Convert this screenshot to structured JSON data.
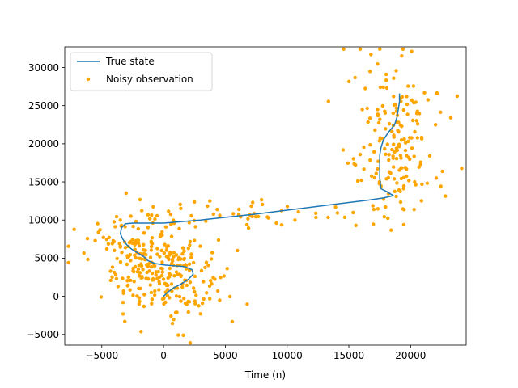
{
  "chart_data": {
    "type": "line",
    "xlabel": "Time (n)",
    "ylabel": "",
    "xlim": [
      -8000,
      24500
    ],
    "ylim": [
      -6400,
      32700
    ],
    "x_ticks": [
      -5000,
      0,
      5000,
      10000,
      15000,
      20000
    ],
    "x_tick_labels": [
      "−5000",
      "0",
      "5000",
      "10000",
      "15000",
      "20000"
    ],
    "y_ticks": [
      -5000,
      0,
      5000,
      10000,
      15000,
      20000,
      25000,
      30000
    ],
    "y_tick_labels": [
      "−5000",
      "0",
      "5000",
      "10000",
      "15000",
      "20000",
      "25000",
      "30000"
    ],
    "grid": false,
    "legend_position": "top-left",
    "series": [
      {
        "name": "True state",
        "kind": "line",
        "color": "#1f77b4",
        "points": [
          [
            0,
            0
          ],
          [
            300,
            500
          ],
          [
            800,
            1100
          ],
          [
            1400,
            1600
          ],
          [
            2000,
            2200
          ],
          [
            2400,
            2900
          ],
          [
            2300,
            3500
          ],
          [
            1700,
            3900
          ],
          [
            900,
            4000
          ],
          [
            100,
            4100
          ],
          [
            -700,
            4300
          ],
          [
            -1300,
            4700
          ],
          [
            -1600,
            5200
          ],
          [
            -2100,
            5700
          ],
          [
            -2600,
            6200
          ],
          [
            -3000,
            6800
          ],
          [
            -3300,
            7500
          ],
          [
            -3500,
            8200
          ],
          [
            -3400,
            9000
          ],
          [
            -3100,
            9500
          ],
          [
            -2500,
            9600
          ],
          [
            -1500,
            9600
          ],
          [
            0,
            9600
          ],
          [
            1500,
            9800
          ],
          [
            3000,
            10000
          ],
          [
            5000,
            10350
          ],
          [
            7500,
            10800
          ],
          [
            10000,
            11300
          ],
          [
            12500,
            11800
          ],
          [
            15000,
            12300
          ],
          [
            16500,
            12600
          ],
          [
            17800,
            12900
          ],
          [
            18600,
            13200
          ],
          [
            18100,
            13700
          ],
          [
            17600,
            14100
          ],
          [
            17500,
            15500
          ],
          [
            17500,
            17000
          ],
          [
            17500,
            18500
          ],
          [
            17600,
            19500
          ],
          [
            17800,
            20500
          ],
          [
            18200,
            21500
          ],
          [
            18700,
            22500
          ],
          [
            18900,
            23500
          ],
          [
            19000,
            24500
          ],
          [
            19100,
            25500
          ],
          [
            19100,
            26600
          ]
        ]
      },
      {
        "name": "Noisy observation",
        "kind": "scatter",
        "color": "#ffa500",
        "points_source": "generated",
        "clusters": [
          {
            "cx": 0,
            "cy": 2500,
            "sx": 2300,
            "sy": 2600,
            "n": 230
          },
          {
            "cx": -2500,
            "cy": 7500,
            "sx": 1800,
            "sy": 2200,
            "n": 90
          },
          {
            "cx": 6500,
            "cy": 10600,
            "sx": 3500,
            "sy": 900,
            "n": 45
          },
          {
            "cx": 18800,
            "cy": 19500,
            "sx": 1800,
            "sy": 5000,
            "n": 190
          }
        ]
      }
    ]
  }
}
